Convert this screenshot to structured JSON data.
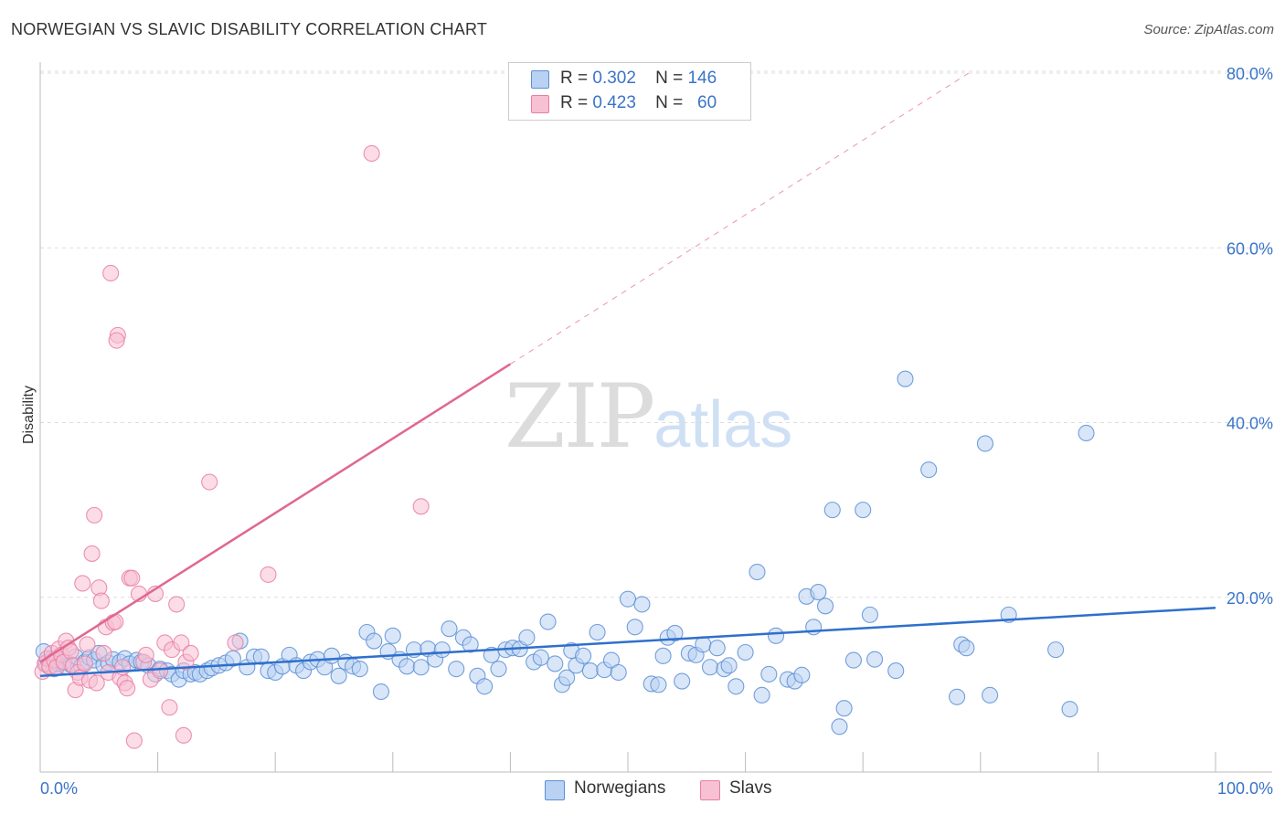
{
  "title": "NORWEGIAN VS SLAVIC DISABILITY CORRELATION CHART",
  "source": "Source: ZipAtlas.com",
  "watermark": {
    "zip": "ZIP",
    "atlas": "atlas"
  },
  "colors": {
    "blue": "#5b8fd6",
    "blue_fill": "#b9d1f2",
    "blue_line": "#2f6fcc",
    "pink": "#e87fa3",
    "pink_fill": "#f7c0d3",
    "pink_line": "#e06890",
    "grid": "#dddddd",
    "axis_text_blue": "#3a74c9"
  },
  "legend_top": [
    {
      "r_label": "R =",
      "r_value": "0.302",
      "n_label": "N =",
      "n_value": "146"
    },
    {
      "r_label": "R =",
      "r_value": "0.423",
      "n_label": "N =",
      "n_value": "60"
    }
  ],
  "chart_data": {
    "type": "scatter",
    "title": "NORWEGIAN VS SLAVIC DISABILITY CORRELATION CHART",
    "xlabel": "",
    "ylabel": "Disability",
    "xlim": [
      0,
      100
    ],
    "ylim": [
      0,
      80
    ],
    "x_tick_labels": [
      "0.0%",
      "100.0%"
    ],
    "y_tick_labels": [
      "20.0%",
      "40.0%",
      "60.0%",
      "80.0%"
    ],
    "y_ticks": [
      20,
      40,
      60,
      80
    ],
    "grid": true,
    "legend": "bottom",
    "series": [
      {
        "name": "Norwegians",
        "regression": {
          "x0": 0,
          "y0": 11.0,
          "x1": 100,
          "y1": 18.8,
          "dashed_extension": false
        },
        "points": [
          [
            0.3,
            13.8
          ],
          [
            0.5,
            12.5
          ],
          [
            0.8,
            12
          ],
          [
            1,
            13
          ],
          [
            1.2,
            11.8
          ],
          [
            1.5,
            12.4
          ],
          [
            1.8,
            12.8
          ],
          [
            2.2,
            12.1
          ],
          [
            2.6,
            12.3
          ],
          [
            3,
            13.2
          ],
          [
            3.5,
            12.1
          ],
          [
            3.8,
            12.6
          ],
          [
            4.2,
            13.1
          ],
          [
            4.6,
            12.8
          ],
          [
            5,
            13.6
          ],
          [
            5.4,
            12.2
          ],
          [
            5.8,
            12.5
          ],
          [
            6.2,
            12.9
          ],
          [
            6.8,
            12.6
          ],
          [
            7.2,
            13
          ],
          [
            7.6,
            12.4
          ],
          [
            8.2,
            12.8
          ],
          [
            8.6,
            12.6
          ],
          [
            9.2,
            12.2
          ],
          [
            9.8,
            11.2
          ],
          [
            10.2,
            11.8
          ],
          [
            10.8,
            11.6
          ],
          [
            11.2,
            11.2
          ],
          [
            11.8,
            10.6
          ],
          [
            12.2,
            11.6
          ],
          [
            12.8,
            11.2
          ],
          [
            13.2,
            11.4
          ],
          [
            13.6,
            11.2
          ],
          [
            14.2,
            11.6
          ],
          [
            14.6,
            11.9
          ],
          [
            15.2,
            12.2
          ],
          [
            15.8,
            12.5
          ],
          [
            16.4,
            13
          ],
          [
            17,
            15
          ],
          [
            17.6,
            12
          ],
          [
            18.2,
            13.2
          ],
          [
            18.8,
            13.2
          ],
          [
            19.4,
            11.6
          ],
          [
            20,
            11.4
          ],
          [
            20.6,
            12.1
          ],
          [
            21.2,
            13.4
          ],
          [
            21.8,
            12.2
          ],
          [
            22.4,
            11.6
          ],
          [
            23,
            12.6
          ],
          [
            23.6,
            12.9
          ],
          [
            24.2,
            12
          ],
          [
            24.8,
            13.3
          ],
          [
            25.4,
            11
          ],
          [
            26,
            12.6
          ],
          [
            26.6,
            12.1
          ],
          [
            27.2,
            11.8
          ],
          [
            27.8,
            16
          ],
          [
            28.4,
            15
          ],
          [
            29,
            9.2
          ],
          [
            29.6,
            13.8
          ],
          [
            30,
            15.6
          ],
          [
            30.6,
            12.9
          ],
          [
            31.2,
            12.1
          ],
          [
            31.8,
            14
          ],
          [
            32.4,
            12
          ],
          [
            33,
            14.1
          ],
          [
            33.6,
            12.9
          ],
          [
            34.2,
            14
          ],
          [
            34.8,
            16.4
          ],
          [
            35.4,
            11.8
          ],
          [
            36,
            15.4
          ],
          [
            36.6,
            14.6
          ],
          [
            37.2,
            11
          ],
          [
            37.8,
            9.8
          ],
          [
            38.4,
            13.4
          ],
          [
            39,
            11.8
          ],
          [
            39.6,
            14
          ],
          [
            40.2,
            14.2
          ],
          [
            40.8,
            14.1
          ],
          [
            41.4,
            15.4
          ],
          [
            42,
            12.6
          ],
          [
            42.6,
            13.1
          ],
          [
            43.2,
            17.2
          ],
          [
            43.8,
            12.4
          ],
          [
            44.4,
            10
          ],
          [
            44.8,
            10.8
          ],
          [
            45.2,
            13.9
          ],
          [
            45.6,
            12.2
          ],
          [
            46.2,
            13.3
          ],
          [
            46.8,
            11.6
          ],
          [
            47.4,
            16
          ],
          [
            48,
            11.7
          ],
          [
            48.6,
            12.8
          ],
          [
            49.2,
            11.4
          ],
          [
            50,
            19.8
          ],
          [
            50.6,
            16.6
          ],
          [
            51.2,
            19.2
          ],
          [
            52,
            10.1
          ],
          [
            52.6,
            10
          ],
          [
            53,
            13.3
          ],
          [
            53.4,
            15.4
          ],
          [
            54,
            15.9
          ],
          [
            54.6,
            10.4
          ],
          [
            55.2,
            13.6
          ],
          [
            55.8,
            13.4
          ],
          [
            56.4,
            14.6
          ],
          [
            57,
            12
          ],
          [
            57.6,
            14.2
          ],
          [
            58.2,
            11.8
          ],
          [
            58.6,
            12.2
          ],
          [
            59.2,
            9.8
          ],
          [
            60,
            13.7
          ],
          [
            61,
            22.9
          ],
          [
            61.4,
            8.8
          ],
          [
            62,
            11.2
          ],
          [
            62.6,
            15.6
          ],
          [
            63.6,
            10.6
          ],
          [
            64.2,
            10.4
          ],
          [
            64.8,
            11.1
          ],
          [
            65.2,
            20.1
          ],
          [
            65.8,
            16.6
          ],
          [
            66.2,
            20.6
          ],
          [
            66.8,
            19
          ],
          [
            67.4,
            30
          ],
          [
            68,
            5.2
          ],
          [
            68.4,
            7.3
          ],
          [
            69.2,
            12.8
          ],
          [
            70,
            30
          ],
          [
            70.6,
            18
          ],
          [
            71,
            12.9
          ],
          [
            72.8,
            11.6
          ],
          [
            73.6,
            45
          ],
          [
            75.6,
            34.6
          ],
          [
            78,
            8.6
          ],
          [
            78.4,
            14.6
          ],
          [
            78.8,
            14.2
          ],
          [
            80.4,
            37.6
          ],
          [
            80.8,
            8.8
          ],
          [
            82.4,
            18
          ],
          [
            86.4,
            14
          ],
          [
            87.6,
            7.2
          ],
          [
            89,
            38.8
          ]
        ]
      },
      {
        "name": "Slavs",
        "regression": {
          "x0": 0,
          "y0": 12.6,
          "x1": 40,
          "y1": 46.7,
          "dashed_extension": true,
          "dash_x1": 79,
          "dash_y1": 80
        },
        "points": [
          [
            0.2,
            11.5
          ],
          [
            0.4,
            12.4
          ],
          [
            0.6,
            13
          ],
          [
            0.8,
            12.1
          ],
          [
            1,
            13.6
          ],
          [
            1.2,
            12.8
          ],
          [
            1.4,
            12
          ],
          [
            1.6,
            14.1
          ],
          [
            1.8,
            13.4
          ],
          [
            2,
            12.6
          ],
          [
            2.2,
            15
          ],
          [
            2.4,
            14.2
          ],
          [
            2.6,
            13.8
          ],
          [
            2.8,
            12.2
          ],
          [
            3,
            9.4
          ],
          [
            3.2,
            11.4
          ],
          [
            3.4,
            10.8
          ],
          [
            3.6,
            21.6
          ],
          [
            3.8,
            12.4
          ],
          [
            4,
            14.6
          ],
          [
            4.2,
            10.5
          ],
          [
            4.4,
            25
          ],
          [
            4.6,
            29.4
          ],
          [
            4.8,
            10.2
          ],
          [
            5,
            21.1
          ],
          [
            5.2,
            19.6
          ],
          [
            5.4,
            13.6
          ],
          [
            5.6,
            16.6
          ],
          [
            5.8,
            11.4
          ],
          [
            6,
            57.1
          ],
          [
            6.2,
            17.1
          ],
          [
            6.4,
            17.2
          ],
          [
            6.8,
            10.8
          ],
          [
            7,
            12
          ],
          [
            7.2,
            10.2
          ],
          [
            7.4,
            9.6
          ],
          [
            6.6,
            50
          ],
          [
            6.5,
            49.4
          ],
          [
            7.6,
            22.2
          ],
          [
            7.8,
            22.2
          ],
          [
            8,
            3.6
          ],
          [
            8.4,
            20.4
          ],
          [
            8.8,
            12.6
          ],
          [
            9,
            13.4
          ],
          [
            9.4,
            10.6
          ],
          [
            9.8,
            20.4
          ],
          [
            10.2,
            11.6
          ],
          [
            10.6,
            14.8
          ],
          [
            11,
            7.4
          ],
          [
            11.2,
            14
          ],
          [
            11.6,
            19.2
          ],
          [
            12,
            14.8
          ],
          [
            12.2,
            4.2
          ],
          [
            12.4,
            12.6
          ],
          [
            12.8,
            13.6
          ],
          [
            14.4,
            33.2
          ],
          [
            16.6,
            14.8
          ],
          [
            19.4,
            22.6
          ],
          [
            28.2,
            70.8
          ],
          [
            32.4,
            30.4
          ]
        ]
      }
    ]
  },
  "bottom_legend": [
    {
      "label": "Norwegians"
    },
    {
      "label": "Slavs"
    }
  ]
}
